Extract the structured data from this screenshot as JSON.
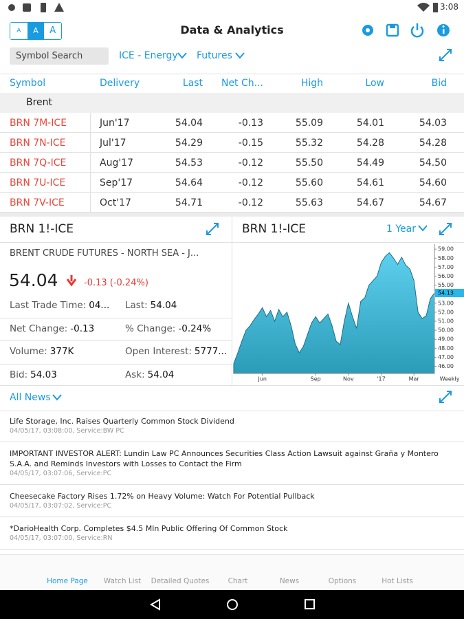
{
  "status_bar": {
    "time": "3:08"
  },
  "header": {
    "font_sizes": [
      "A",
      "A",
      "A"
    ],
    "title": "Data & Analytics"
  },
  "toolbar": {
    "search_placeholder": "Symbol Search",
    "exchange": "ICE - Energy",
    "instrument": "Futures"
  },
  "table": {
    "columns": [
      "Symbol",
      "Delivery",
      "Last",
      "Net Ch...",
      "High",
      "Low",
      "Bid"
    ],
    "group": "Brent",
    "rows": [
      [
        "BRN 7M-ICE",
        "Jun'17",
        "54.04",
        "-0.13",
        "55.09",
        "54.01",
        "54.03"
      ],
      [
        "BRN 7N-ICE",
        "Jul'17",
        "54.29",
        "-0.15",
        "55.32",
        "54.28",
        "54.28"
      ],
      [
        "BRN 7Q-ICE",
        "Aug'17",
        "54.53",
        "-0.12",
        "55.50",
        "54.49",
        "54.50"
      ],
      [
        "BRN 7U-ICE",
        "Sep'17",
        "54.64",
        "-0.12",
        "55.60",
        "54.61",
        "54.60"
      ],
      [
        "BRN 7V-ICE",
        "Oct'17",
        "54.71",
        "-0.12",
        "55.63",
        "54.67",
        "54.67"
      ]
    ]
  },
  "quote": {
    "symbol": "BRN 1!-ICE",
    "name": "BRENT CRUDE FUTURES - NORTH SEA - J...",
    "price": "54.04",
    "change": "-0.13 (-0.24%)",
    "fields": [
      {
        "label": "Last Trade Time:",
        "value": "04..."
      },
      {
        "label": "Last:",
        "value": "54.04"
      },
      {
        "label": "Net Change:",
        "value": "-0.13"
      },
      {
        "label": "% Change:",
        "value": "-0.24%"
      },
      {
        "label": "Volume:",
        "value": "377K"
      },
      {
        "label": "Open Interest:",
        "value": "5777..."
      },
      {
        "label": "Bid:",
        "value": "54.03"
      },
      {
        "label": "Ask:",
        "value": "54.04"
      }
    ]
  },
  "chart_data": {
    "type": "area",
    "title": "BRN 1!-ICE",
    "period": "1 Year",
    "x_label": "Weekly",
    "color": "#2b9cb8",
    "categories": [
      null,
      null,
      null,
      null,
      null,
      null,
      null,
      "Jun",
      null,
      null,
      null,
      null,
      null,
      null,
      null,
      null,
      null,
      null,
      null,
      null,
      "Sep",
      null,
      null,
      null,
      null,
      null,
      null,
      null,
      "Nov",
      null,
      null,
      null,
      null,
      null,
      null,
      null,
      "'17",
      null,
      null,
      null,
      null,
      null,
      null,
      null,
      "Mar",
      null,
      null,
      null,
      null,
      null
    ],
    "values": [
      46.3,
      47.5,
      48.8,
      50.0,
      50.5,
      51.2,
      51.8,
      52.5,
      51.5,
      52.2,
      51.0,
      52.3,
      51.5,
      52.0,
      50.5,
      48.5,
      47.5,
      48.2,
      49.5,
      50.8,
      51.5,
      50.8,
      51.3,
      51.8,
      50.5,
      48.8,
      48.4,
      51.0,
      53.0,
      51.5,
      50.2,
      53.2,
      53.6,
      55.0,
      55.5,
      56.0,
      57.5,
      58.2,
      58.6,
      58.0,
      57.3,
      58.1,
      57.2,
      56.8,
      55.5,
      52.0,
      51.3,
      51.6,
      53.5,
      54.13
    ],
    "last_value": 54.13,
    "ylim": [
      45.2,
      59.55
    ],
    "yticks": [
      {
        "value": 46,
        "label": "46.00"
      },
      {
        "value": 47,
        "label": "47.00"
      },
      {
        "value": 48,
        "label": "48.00"
      },
      {
        "value": 49,
        "label": "49.00"
      },
      {
        "value": 50,
        "label": "50.00"
      },
      {
        "value": 51,
        "label": "51.00"
      },
      {
        "value": 52,
        "label": "52.00"
      },
      {
        "value": 53,
        "label": "53.00"
      },
      {
        "value": 54,
        "label": "54.00"
      },
      {
        "value": 55,
        "label": "55.00"
      },
      {
        "value": 56,
        "label": "56.00"
      },
      {
        "value": 57,
        "label": "57.00"
      },
      {
        "value": 58,
        "label": "58.00"
      },
      {
        "value": 59,
        "label": "59.00"
      }
    ]
  },
  "news": {
    "filter": "All News",
    "items": [
      {
        "headline": "Life Storage, Inc. Raises Quarterly Common Stock Dividend",
        "meta": "04/05/17, 03:08:00, Service:BW PC"
      },
      {
        "headline": "IMPORTANT INVESTOR ALERT: Lundin Law PC Announces Securities Class Action Lawsuit against Graña y Montero S.A.A. and Reminds Investors with Losses to Contact the Firm",
        "meta": "04/05/17, 03:07:06, Service:PC"
      },
      {
        "headline": "Cheesecake Factory Rises 1.72% on Heavy Volume: Watch For Potential Pullback",
        "meta": "04/05/17, 03:07:02, Service:PC"
      },
      {
        "headline": "*DarioHealth Corp. Completes $4.5 Mln Public Offering Of Common Stock",
        "meta": "04/05/17, 03:07:00, Service:RN"
      }
    ]
  },
  "nav": [
    "Home Page",
    "Watch List",
    "Detailed Quotes",
    "Chart",
    "News",
    "Options",
    "Hot Lists"
  ]
}
